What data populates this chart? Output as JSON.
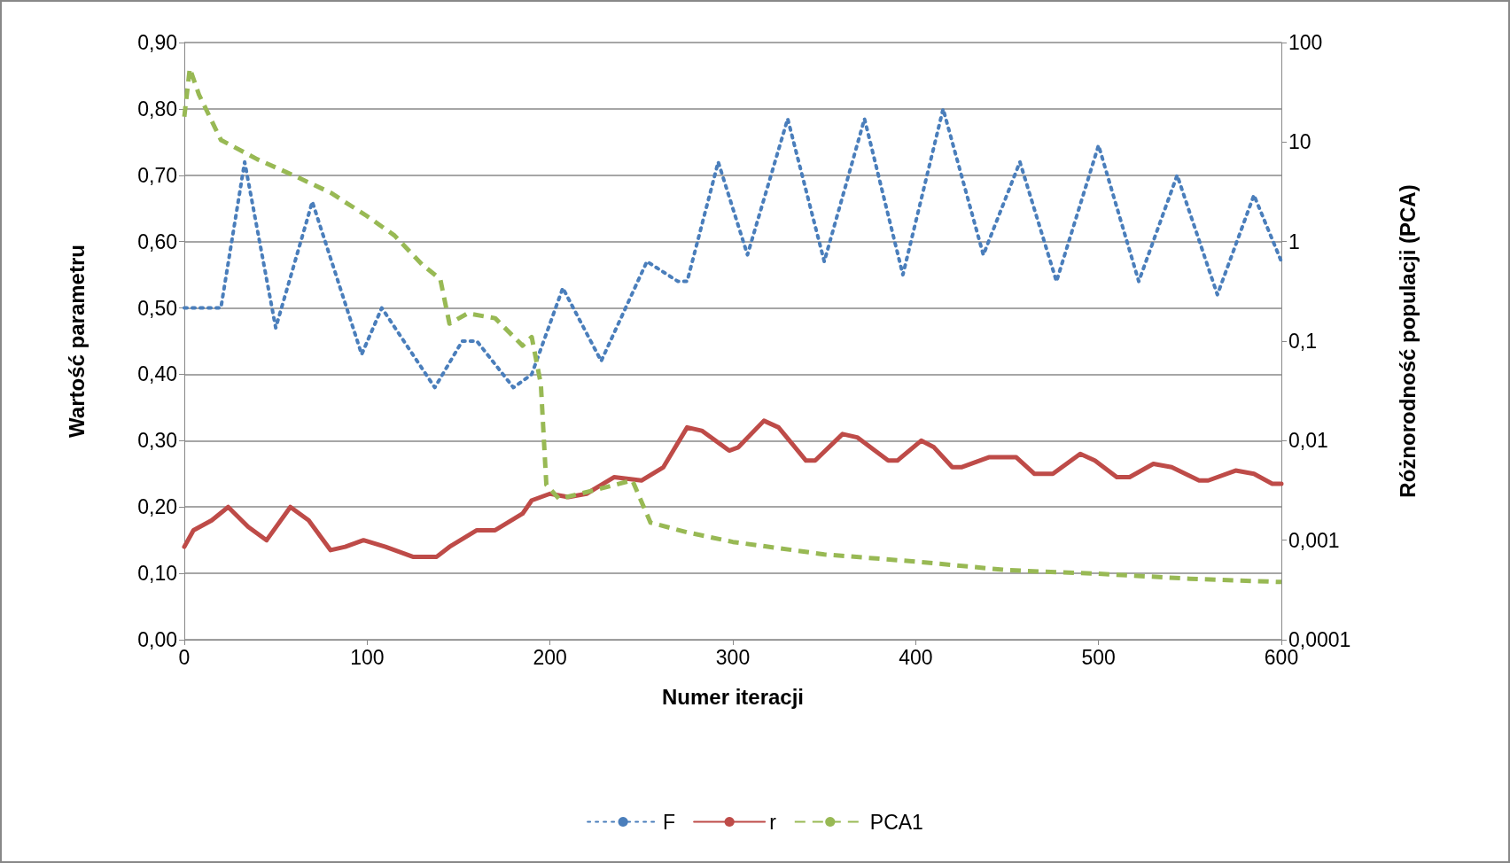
{
  "chart_data": {
    "type": "line",
    "xlabel": "Numer iteracji",
    "ylabel": "Wartość parametru",
    "y2label": "Różnorodność populacji (PCA)",
    "xlim": [
      0,
      600
    ],
    "xticks": [
      0,
      100,
      200,
      300,
      400,
      500,
      600
    ],
    "ylim": [
      0,
      0.9
    ],
    "yticks": [
      {
        "value": 0,
        "label": "0,00"
      },
      {
        "value": 0.1,
        "label": "0,10"
      },
      {
        "value": 0.2,
        "label": "0,20"
      },
      {
        "value": 0.3,
        "label": "0,30"
      },
      {
        "value": 0.4,
        "label": "0,40"
      },
      {
        "value": 0.5,
        "label": "0,50"
      },
      {
        "value": 0.6,
        "label": "0,60"
      },
      {
        "value": 0.7,
        "label": "0,70"
      },
      {
        "value": 0.8,
        "label": "0,80"
      },
      {
        "value": 0.9,
        "label": "0,90"
      }
    ],
    "y2lim": [
      0.0001,
      100
    ],
    "y2ticks": [
      {
        "value": 0.0001,
        "label": "0,0001"
      },
      {
        "value": 0.001,
        "label": "0,001"
      },
      {
        "value": 0.01,
        "label": "0,01"
      },
      {
        "value": 0.1,
        "label": "0,1"
      },
      1,
      10,
      100
    ],
    "log": "y2",
    "grid": "y",
    "legend": "bottom",
    "series": [
      {
        "name": "F",
        "color": "#4a7ebb",
        "line_style": "dotted",
        "x": [
          0,
          20,
          33,
          50,
          70,
          97,
          108,
          137,
          152,
          160,
          180,
          190,
          207,
          228,
          253,
          270,
          275,
          292,
          308,
          330,
          350,
          372,
          393,
          415,
          437,
          457,
          477,
          500,
          522,
          543,
          565,
          585,
          600
        ],
        "values": [
          0.5,
          0.5,
          0.72,
          0.47,
          0.66,
          0.43,
          0.5,
          0.38,
          0.45,
          0.45,
          0.38,
          0.4,
          0.53,
          0.42,
          0.57,
          0.54,
          0.54,
          0.72,
          0.58,
          0.785,
          0.57,
          0.785,
          0.55,
          0.8,
          0.58,
          0.72,
          0.54,
          0.745,
          0.54,
          0.7,
          0.52,
          0.67,
          0.57
        ]
      },
      {
        "name": "r",
        "color": "#be4b48",
        "line_style": "solid",
        "x": [
          0,
          5,
          15,
          24,
          35,
          45,
          58,
          68,
          80,
          88,
          98,
          110,
          125,
          138,
          145,
          160,
          170,
          185,
          190,
          200,
          210,
          220,
          235,
          250,
          262,
          275,
          283,
          298,
          303,
          317,
          325,
          340,
          345,
          360,
          368,
          385,
          390,
          403,
          410,
          420,
          425,
          440,
          455,
          465,
          475,
          490,
          498,
          510,
          517,
          530,
          540,
          555,
          560,
          575,
          585,
          595,
          600
        ],
        "values": [
          0.14,
          0.165,
          0.18,
          0.2,
          0.17,
          0.15,
          0.2,
          0.18,
          0.135,
          0.14,
          0.15,
          0.14,
          0.125,
          0.125,
          0.14,
          0.165,
          0.165,
          0.19,
          0.21,
          0.22,
          0.215,
          0.22,
          0.245,
          0.24,
          0.26,
          0.32,
          0.315,
          0.285,
          0.29,
          0.33,
          0.32,
          0.27,
          0.27,
          0.31,
          0.305,
          0.27,
          0.27,
          0.3,
          0.29,
          0.26,
          0.26,
          0.275,
          0.275,
          0.25,
          0.25,
          0.28,
          0.27,
          0.245,
          0.245,
          0.265,
          0.26,
          0.24,
          0.24,
          0.255,
          0.25,
          0.235,
          0.235
        ]
      },
      {
        "name": "PCA1",
        "color": "#98b954",
        "line_style": "dashed",
        "axis": "y2",
        "x": [
          0,
          3,
          8,
          20,
          40,
          60,
          80,
          100,
          115,
          130,
          140,
          145,
          155,
          170,
          185,
          190,
          195,
          198,
          205,
          225,
          245,
          255,
          275,
          300,
          350,
          400,
          450,
          500,
          550,
          600
        ],
        "values": [
          18,
          55,
          30,
          10.5,
          6.7,
          4.6,
          3.1,
          1.8,
          1.15,
          0.59,
          0.42,
          0.15,
          0.19,
          0.17,
          0.09,
          0.11,
          0.037,
          0.0036,
          0.0026,
          0.0032,
          0.004,
          0.0015,
          0.0012,
          0.00096,
          0.00072,
          0.00061,
          0.0005,
          0.00046,
          0.00041,
          0.00038
        ]
      }
    ]
  }
}
